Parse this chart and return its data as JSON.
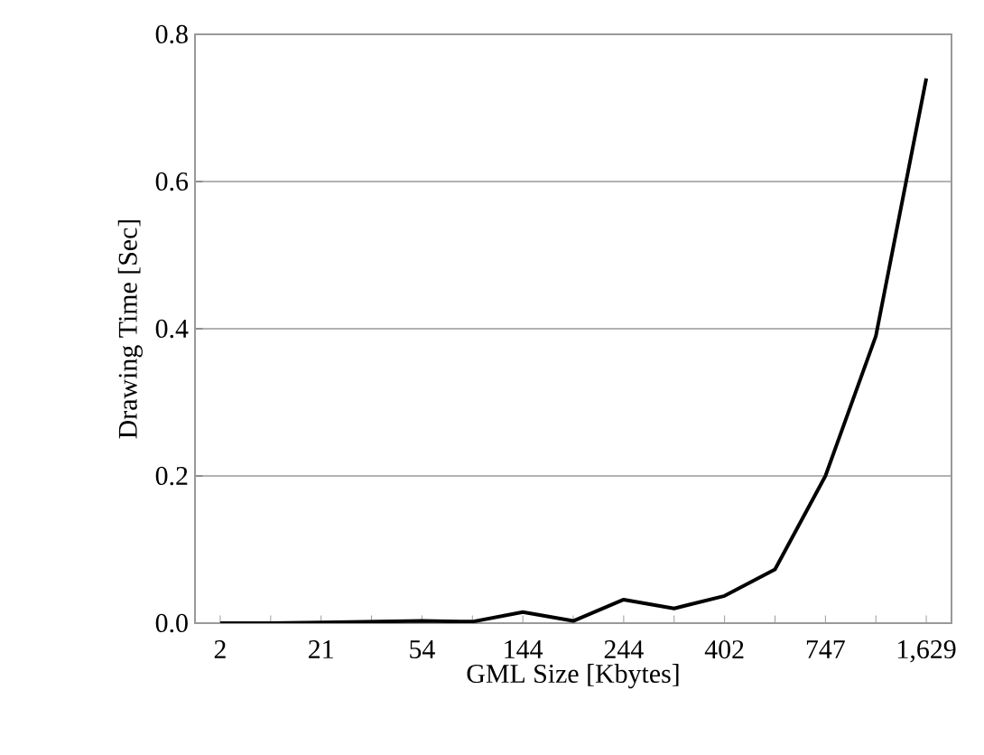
{
  "chart_data": {
    "type": "line",
    "xlabel": "GML Size [Kbytes]",
    "ylabel": "Drawing Time [Sec]",
    "categories": [
      "2",
      null,
      "21",
      null,
      "54",
      null,
      "144",
      null,
      "244",
      null,
      "402",
      null,
      "747",
      null,
      "1,629"
    ],
    "values": [
      0,
      0,
      0.001,
      0.002,
      0.003,
      0.002,
      0.015,
      0.003,
      0.032,
      0.02,
      0.037,
      0.073,
      0.2,
      0.39,
      0.74
    ],
    "color": "#000000",
    "ylim": [
      0,
      0.8
    ],
    "yticks": [
      {
        "value": 0,
        "label": "0.0"
      },
      {
        "value": 0.2,
        "label": "0.2"
      },
      {
        "value": 0.4,
        "label": "0.4"
      },
      {
        "value": 0.6,
        "label": "0.6"
      },
      {
        "value": 0.8,
        "label": "0.8"
      }
    ],
    "grid": "y",
    "marker": "none",
    "line_style": "solid"
  }
}
